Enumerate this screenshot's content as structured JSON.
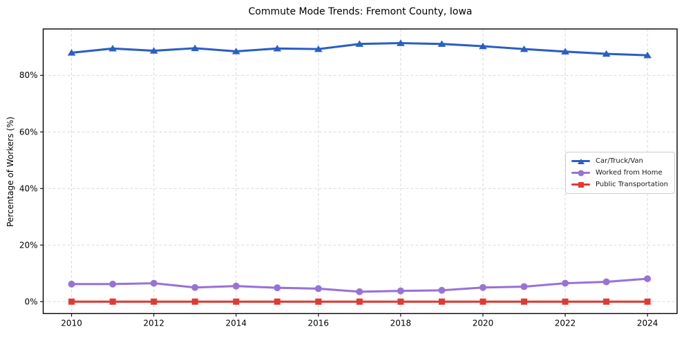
{
  "chart_data": {
    "type": "line",
    "title": "Commute Mode Trends: Fremont County, Iowa",
    "xlabel": "",
    "ylabel": "Percentage of Workers (%)",
    "x": [
      2010,
      2011,
      2012,
      2013,
      2014,
      2015,
      2016,
      2017,
      2018,
      2019,
      2020,
      2021,
      2022,
      2023,
      2024
    ],
    "series": [
      {
        "name": "Car/Truck/Van",
        "color": "#2a5fc4",
        "marker": "triangle",
        "values": [
          88.0,
          89.5,
          88.7,
          89.6,
          88.5,
          89.5,
          89.3,
          91.1,
          91.4,
          91.1,
          90.3,
          89.3,
          88.4,
          87.6,
          87.1
        ]
      },
      {
        "name": "Worked from Home",
        "color": "#9873d6",
        "marker": "circle",
        "values": [
          6.2,
          6.2,
          6.5,
          5.0,
          5.5,
          4.9,
          4.6,
          3.5,
          3.8,
          4.0,
          5.0,
          5.3,
          6.5,
          7.0,
          8.1
        ]
      },
      {
        "name": "Public Transportation",
        "color": "#e03a34",
        "marker": "square",
        "values": [
          0.0,
          0.0,
          0.0,
          0.0,
          0.0,
          0.0,
          0.0,
          0.0,
          0.0,
          0.0,
          0.0,
          0.0,
          0.0,
          0.0,
          0.0
        ]
      }
    ],
    "xticks": [
      2010,
      2012,
      2014,
      2016,
      2018,
      2020,
      2022,
      2024
    ],
    "xtick_labels": [
      "2010",
      "2012",
      "2014",
      "2016",
      "2018",
      "2020",
      "2022",
      "2024"
    ],
    "yticks": [
      0,
      20,
      40,
      60,
      80
    ],
    "ytick_labels": [
      "0%",
      "20%",
      "40%",
      "60%",
      "80%"
    ],
    "xlim": [
      2009.31,
      2024.72
    ],
    "ylim": [
      -4.2,
      96.4
    ],
    "grid": true,
    "grid_style": "dashed",
    "legend_position": "center right"
  }
}
